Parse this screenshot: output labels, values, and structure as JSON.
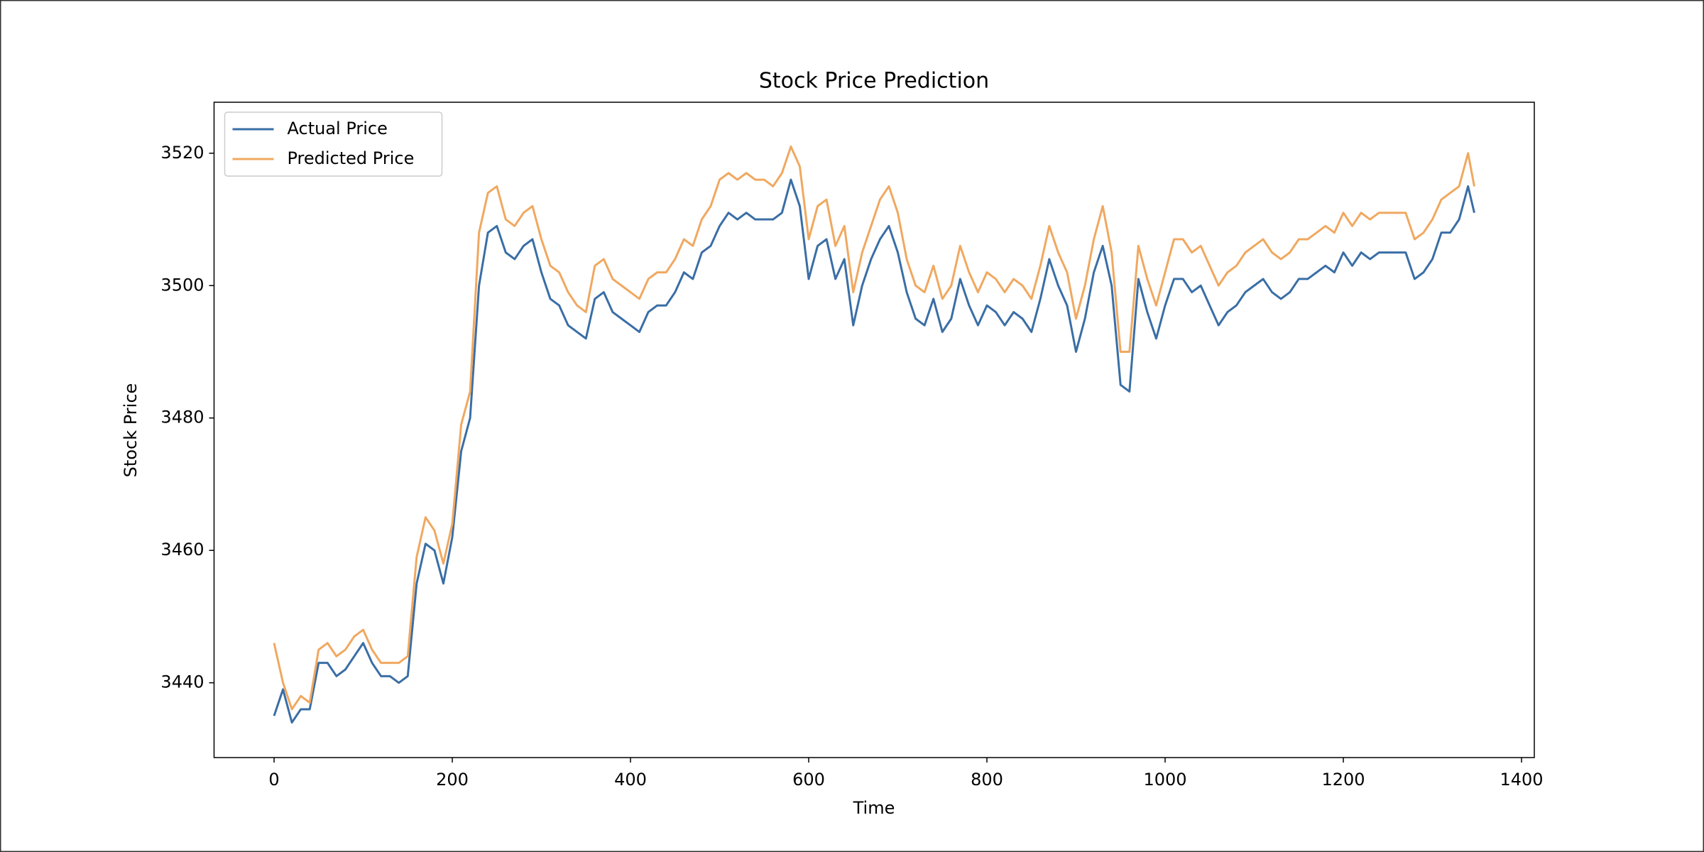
{
  "chart_data": {
    "type": "line",
    "title": "Stock Price Prediction",
    "xlabel": "Time",
    "ylabel": "Stock Price",
    "x": [
      0,
      10,
      20,
      30,
      40,
      50,
      60,
      70,
      80,
      90,
      100,
      110,
      120,
      130,
      140,
      150,
      160,
      170,
      180,
      190,
      200,
      210,
      220,
      230,
      240,
      250,
      260,
      270,
      280,
      290,
      300,
      310,
      320,
      330,
      340,
      350,
      360,
      370,
      380,
      390,
      400,
      410,
      420,
      430,
      440,
      450,
      460,
      470,
      480,
      490,
      500,
      510,
      520,
      530,
      540,
      550,
      560,
      570,
      580,
      590,
      600,
      610,
      620,
      630,
      640,
      650,
      660,
      670,
      680,
      690,
      700,
      710,
      720,
      730,
      740,
      750,
      760,
      770,
      780,
      790,
      800,
      810,
      820,
      830,
      840,
      850,
      860,
      870,
      880,
      890,
      900,
      910,
      920,
      930,
      940,
      950,
      960,
      970,
      980,
      990,
      1000,
      1010,
      1020,
      1030,
      1040,
      1050,
      1060,
      1070,
      1080,
      1090,
      1100,
      1110,
      1120,
      1130,
      1140,
      1150,
      1160,
      1170,
      1180,
      1190,
      1200,
      1210,
      1220,
      1230,
      1240,
      1250,
      1260,
      1270,
      1280,
      1290,
      1300,
      1310,
      1320,
      1330,
      1340,
      1347
    ],
    "series": [
      {
        "name": "Actual Price",
        "color": "#3a6ea5",
        "values": [
          3435,
          3439,
          3434,
          3436,
          3436,
          3443,
          3443,
          3441,
          3442,
          3444,
          3446,
          3443,
          3441,
          3441,
          3440,
          3441,
          3455,
          3461,
          3460,
          3455,
          3462,
          3475,
          3480,
          3500,
          3508,
          3509,
          3505,
          3504,
          3506,
          3507,
          3502,
          3498,
          3497,
          3494,
          3493,
          3492,
          3498,
          3499,
          3496,
          3495,
          3494,
          3493,
          3496,
          3497,
          3497,
          3499,
          3502,
          3501,
          3505,
          3506,
          3509,
          3511,
          3510,
          3511,
          3510,
          3510,
          3510,
          3511,
          3516,
          3512,
          3501,
          3506,
          3507,
          3501,
          3504,
          3494,
          3500,
          3504,
          3507,
          3509,
          3505,
          3499,
          3495,
          3494,
          3498,
          3493,
          3495,
          3501,
          3497,
          3494,
          3497,
          3496,
          3494,
          3496,
          3495,
          3493,
          3498,
          3504,
          3500,
          3497,
          3490,
          3495,
          3502,
          3506,
          3500,
          3485,
          3484,
          3501,
          3496,
          3492,
          3497,
          3501,
          3501,
          3499,
          3500,
          3497,
          3494,
          3496,
          3497,
          3499,
          3500,
          3501,
          3499,
          3498,
          3499,
          3501,
          3501,
          3502,
          3503,
          3502,
          3505,
          3503,
          3505,
          3504,
          3505,
          3505,
          3505,
          3505,
          3501,
          3502,
          3504,
          3508,
          3508,
          3510,
          3515,
          3511
        ]
      },
      {
        "name": "Predicted Price",
        "color": "#f0a860",
        "values": [
          3446,
          3440,
          3436,
          3438,
          3437,
          3445,
          3446,
          3444,
          3445,
          3447,
          3448,
          3445,
          3443,
          3443,
          3443,
          3444,
          3459,
          3465,
          3463,
          3458,
          3464,
          3479,
          3484,
          3508,
          3514,
          3515,
          3510,
          3509,
          3511,
          3512,
          3507,
          3503,
          3502,
          3499,
          3497,
          3496,
          3503,
          3504,
          3501,
          3500,
          3499,
          3498,
          3501,
          3502,
          3502,
          3504,
          3507,
          3506,
          3510,
          3512,
          3516,
          3517,
          3516,
          3517,
          3516,
          3516,
          3515,
          3517,
          3521,
          3518,
          3507,
          3512,
          3513,
          3506,
          3509,
          3499,
          3505,
          3509,
          3513,
          3515,
          3511,
          3504,
          3500,
          3499,
          3503,
          3498,
          3500,
          3506,
          3502,
          3499,
          3502,
          3501,
          3499,
          3501,
          3500,
          3498,
          3503,
          3509,
          3505,
          3502,
          3495,
          3500,
          3507,
          3512,
          3505,
          3490,
          3490,
          3506,
          3501,
          3497,
          3502,
          3507,
          3507,
          3505,
          3506,
          3503,
          3500,
          3502,
          3503,
          3505,
          3506,
          3507,
          3505,
          3504,
          3505,
          3507,
          3507,
          3508,
          3509,
          3508,
          3511,
          3509,
          3511,
          3510,
          3511,
          3511,
          3511,
          3511,
          3507,
          3508,
          3510,
          3513,
          3514,
          3515,
          3520,
          3515
        ]
      }
    ],
    "xlim": [
      -67.35,
      1414.35
    ],
    "ylim": [
      3428.7,
      3527.7
    ],
    "xticks": [
      0,
      200,
      400,
      600,
      800,
      1000,
      1200,
      1400
    ],
    "yticks": [
      3440,
      3460,
      3480,
      3500,
      3520
    ],
    "grid": false,
    "legend": "upper left"
  }
}
